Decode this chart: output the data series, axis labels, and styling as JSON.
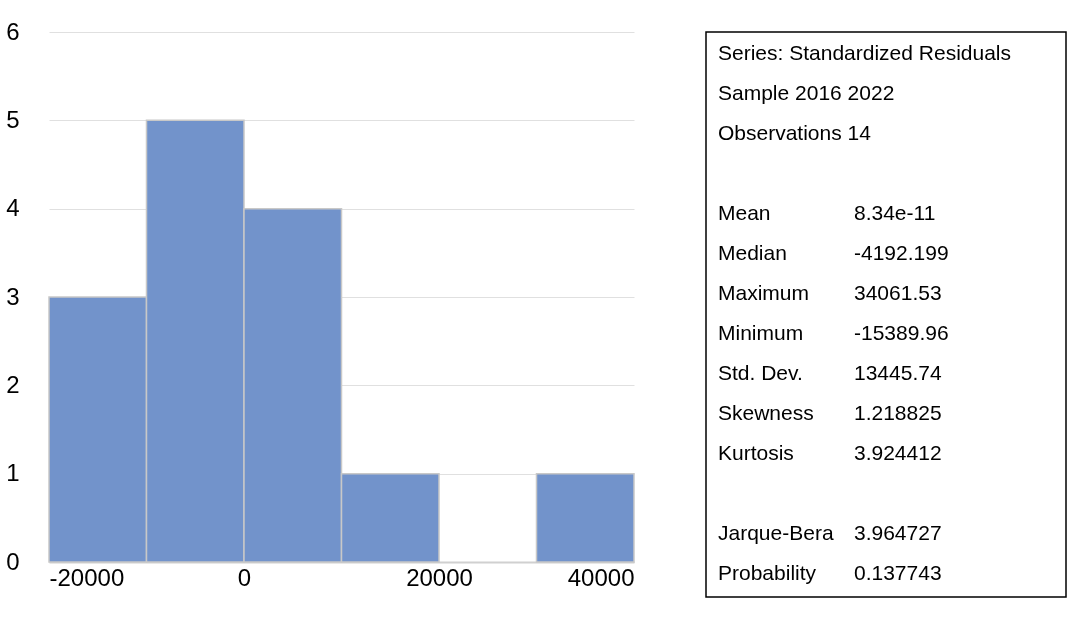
{
  "chart_data": {
    "type": "histogram",
    "bins": [
      -20000,
      -10000,
      0,
      10000,
      20000,
      30000,
      40000
    ],
    "values": [
      3,
      5,
      4,
      1,
      0,
      1
    ],
    "color": "#7293cb",
    "xlim": [
      -20000,
      40000
    ],
    "xticks": [
      {
        "value": -20000,
        "label": "-20000"
      },
      0,
      {
        "value": 20000,
        "label": "20000"
      },
      {
        "value": 40000,
        "label": "40000"
      }
    ],
    "ylim": [
      0,
      6
    ],
    "yticks": [
      0,
      1,
      2,
      3,
      4,
      5,
      6
    ],
    "grid": "y",
    "annotations": [
      "Series: Standardized Residuals",
      "Sample 2016 2022",
      "Observations 14",
      "Mean\t8.34e-11",
      "Median\t-4192.199",
      "Maximum\t34061.53",
      "Minimum\t-15389.96",
      "Std. Dev.\t13445.74",
      "Skewness\t1.218825",
      "Kurtosis\t3.924412",
      "Jarque-Bera\t3.964727",
      "Probability\t0.137743"
    ]
  }
}
